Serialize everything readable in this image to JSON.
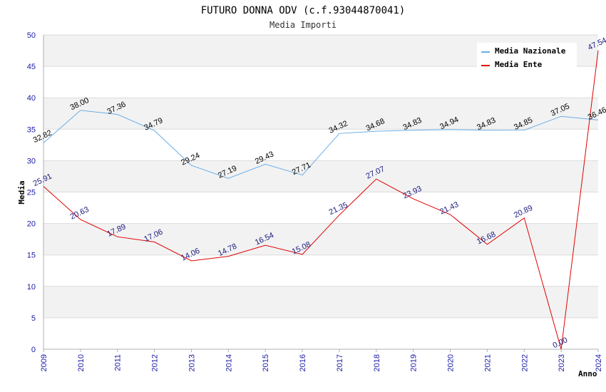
{
  "chart_data": {
    "type": "line",
    "title": "FUTURO DONNA ODV (c.f.93044870041)",
    "subtitle": "Media Importi",
    "xlabel": "Anno",
    "ylabel": "Media",
    "ylim": [
      0,
      50
    ],
    "yticks": [
      0,
      5,
      10,
      15,
      20,
      25,
      30,
      35,
      40,
      45,
      50
    ],
    "x": [
      "2009",
      "2010",
      "2011",
      "2012",
      "2013",
      "2014",
      "2015",
      "2016",
      "2017",
      "2018",
      "2019",
      "2020",
      "2021",
      "2022",
      "2023",
      "2024"
    ],
    "series": [
      {
        "name": "Media Nazionale",
        "color": "#6aaee8",
        "values": [
          32.82,
          38.0,
          37.36,
          34.79,
          29.24,
          27.19,
          29.43,
          27.71,
          34.32,
          34.68,
          34.83,
          34.94,
          34.83,
          34.85,
          37.05,
          36.46
        ],
        "labels": [
          "32.82",
          "38.00",
          "37.36",
          "34.79",
          "29.24",
          "27.19",
          "29.43",
          "27.71",
          "34.32",
          "34.68",
          "34.83",
          "34.94",
          "34.83",
          "34.85",
          "37.05",
          "36.46"
        ]
      },
      {
        "name": "Media Ente",
        "color": "#e00000",
        "values": [
          25.91,
          20.63,
          17.89,
          17.06,
          14.06,
          14.78,
          16.54,
          15.08,
          21.35,
          27.07,
          23.93,
          21.43,
          16.68,
          20.89,
          0.0,
          47.54
        ],
        "labels": [
          "25.91",
          "20.63",
          "17.89",
          "17.06",
          "14.06",
          "14.78",
          "16.54",
          "15.08",
          "21.35",
          "27.07",
          "23.93",
          "21.43",
          "16.68",
          "20.89",
          "0.00",
          "47.54"
        ]
      }
    ],
    "grid": true,
    "legend_position": "top-right"
  }
}
